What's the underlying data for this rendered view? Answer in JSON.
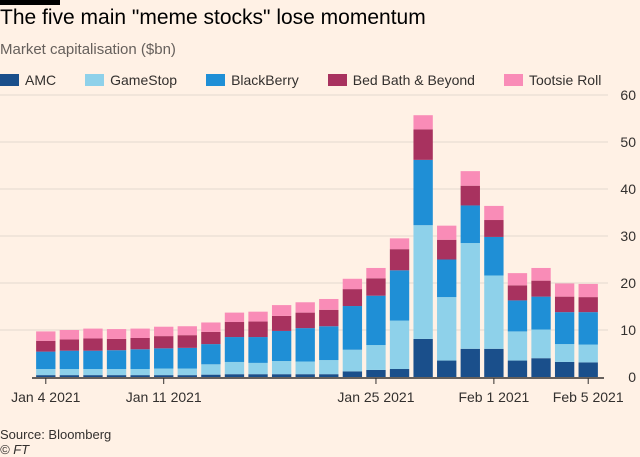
{
  "header": {
    "title": "The five main \"meme stocks\" lose momentum",
    "subtitle": "Market capitalisation ($bn)"
  },
  "footer": {
    "source": "Source: Bloomberg",
    "credit": "© FT"
  },
  "colors": {
    "background": "#fff1e5",
    "grid": "#e3d9cf",
    "axis": "#33302e",
    "text": "#33302e",
    "AMC": "#1a4f8b",
    "GameStop": "#8ed1ea",
    "BlackBerry": "#1f8fd6",
    "Bed Bath & Beyond": "#a8325f",
    "Tootsie Roll": "#f98cb7"
  },
  "chart_data": {
    "type": "bar",
    "stacked": true,
    "title": "The five main \"meme stocks\" lose momentum",
    "subtitle": "Market capitalisation ($bn)",
    "xlabel": "",
    "ylabel": "",
    "ylim": [
      0,
      60
    ],
    "yticks": [
      0,
      10,
      20,
      30,
      40,
      50,
      60
    ],
    "grid": true,
    "legend_position": "top",
    "categories": [
      "Jan 4 2021",
      "Jan 5 2021",
      "Jan 6 2021",
      "Jan 7 2021",
      "Jan 8 2021",
      "Jan 11 2021",
      "Jan 12 2021",
      "Jan 13 2021",
      "Jan 14 2021",
      "Jan 15 2021",
      "Jan 19 2021",
      "Jan 20 2021",
      "Jan 21 2021",
      "Jan 22 2021",
      "Jan 25 2021",
      "Jan 26 2021",
      "Jan 27 2021",
      "Jan 28 2021",
      "Jan 29 2021",
      "Feb 1 2021",
      "Feb 2 2021",
      "Feb 3 2021",
      "Feb 4 2021",
      "Feb 5 2021"
    ],
    "tick_labels": [
      {
        "label": "Jan 4 2021",
        "index": 0
      },
      {
        "label": "Jan 11 2021",
        "index": 5
      },
      {
        "label": "Jan 25 2021",
        "index": 14
      },
      {
        "label": "Feb 1 2021",
        "index": 19
      },
      {
        "label": "Feb 5 2021",
        "index": 23
      }
    ],
    "series": [
      {
        "name": "AMC",
        "values": [
          0.4,
          0.4,
          0.4,
          0.4,
          0.4,
          0.4,
          0.4,
          0.5,
          0.6,
          0.6,
          0.6,
          0.6,
          0.6,
          1.2,
          1.5,
          1.7,
          8.1,
          3.5,
          6.0,
          6.0,
          3.5,
          4.0,
          3.2,
          3.1
        ]
      },
      {
        "name": "GameStop",
        "values": [
          1.3,
          1.3,
          1.3,
          1.3,
          1.3,
          1.4,
          1.4,
          2.2,
          2.6,
          2.4,
          2.8,
          2.7,
          3.0,
          4.6,
          5.3,
          10.3,
          24.2,
          13.5,
          22.5,
          15.6,
          6.2,
          6.1,
          3.8,
          3.8
        ]
      },
      {
        "name": "BlackBerry",
        "values": [
          3.7,
          3.9,
          3.9,
          4.0,
          4.2,
          4.3,
          4.4,
          4.3,
          5.3,
          5.5,
          6.4,
          7.1,
          7.2,
          9.3,
          10.5,
          10.7,
          13.9,
          8.0,
          8.0,
          8.2,
          6.6,
          7.0,
          6.8,
          6.9
        ]
      },
      {
        "name": "Bed Bath & Beyond",
        "values": [
          2.3,
          2.4,
          2.6,
          2.4,
          2.4,
          2.6,
          2.7,
          2.6,
          3.2,
          3.3,
          3.2,
          3.3,
          3.5,
          3.6,
          3.7,
          4.5,
          6.5,
          4.2,
          4.2,
          3.6,
          3.2,
          3.4,
          3.3,
          3.2
        ]
      },
      {
        "name": "Tootsie Roll",
        "values": [
          2.0,
          2.0,
          2.1,
          2.1,
          2.0,
          2.0,
          1.9,
          2.0,
          2.0,
          2.1,
          2.3,
          2.2,
          2.3,
          2.2,
          2.2,
          2.3,
          3.0,
          3.0,
          3.1,
          3.0,
          2.6,
          2.7,
          2.8,
          2.8
        ]
      }
    ]
  }
}
